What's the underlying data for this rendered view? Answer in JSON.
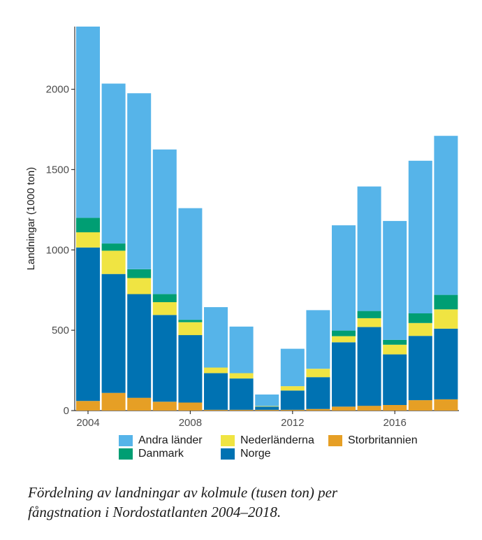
{
  "chart_data": {
    "type": "bar",
    "stacked": true,
    "title": "",
    "xlabel": "",
    "ylabel": "Landningar (1000 ton)",
    "ylim": [
      0,
      2390
    ],
    "yticks": [
      0,
      500,
      1000,
      1500,
      2000
    ],
    "xticks": [
      2004,
      2008,
      2012,
      2016
    ],
    "x": [
      2004,
      2005,
      2006,
      2007,
      2008,
      2009,
      2010,
      2011,
      2012,
      2013,
      2014,
      2015,
      2016,
      2017,
      2018
    ],
    "series": [
      {
        "name": "Storbritannien",
        "color": "#E69F25",
        "values": [
          60,
          110,
          80,
          55,
          50,
          5,
          5,
          5,
          5,
          10,
          25,
          30,
          35,
          65,
          70
        ]
      },
      {
        "name": "Norge",
        "color": "#0072B2",
        "values": [
          955,
          740,
          645,
          540,
          420,
          228,
          195,
          20,
          120,
          198,
          400,
          490,
          315,
          400,
          440
        ]
      },
      {
        "name": "Nederländerna",
        "color": "#F0E442",
        "values": [
          95,
          145,
          100,
          80,
          80,
          35,
          33,
          3,
          27,
          52,
          38,
          55,
          60,
          80,
          120
        ]
      },
      {
        "name": "Danmark",
        "color": "#009E73",
        "values": [
          90,
          45,
          55,
          50,
          15,
          0,
          0,
          0,
          0,
          0,
          35,
          45,
          30,
          60,
          90
        ]
      },
      {
        "name": "Andra länder",
        "color": "#56B4E9",
        "values": [
          1190,
          995,
          1095,
          900,
          695,
          376,
          290,
          72,
          233,
          365,
          655,
          775,
          740,
          950,
          990
        ]
      }
    ],
    "legend": {
      "placement": "bottom",
      "rows": [
        [
          "Andra länder",
          "Nederländerna",
          "Storbritannien"
        ],
        [
          "Danmark",
          "Norge"
        ]
      ]
    }
  },
  "caption": {
    "line1": "Fördelning av landningar av kolmule (tusen ton) per",
    "line2": "fångstnation i Nordostatlanten 2004–2018."
  }
}
